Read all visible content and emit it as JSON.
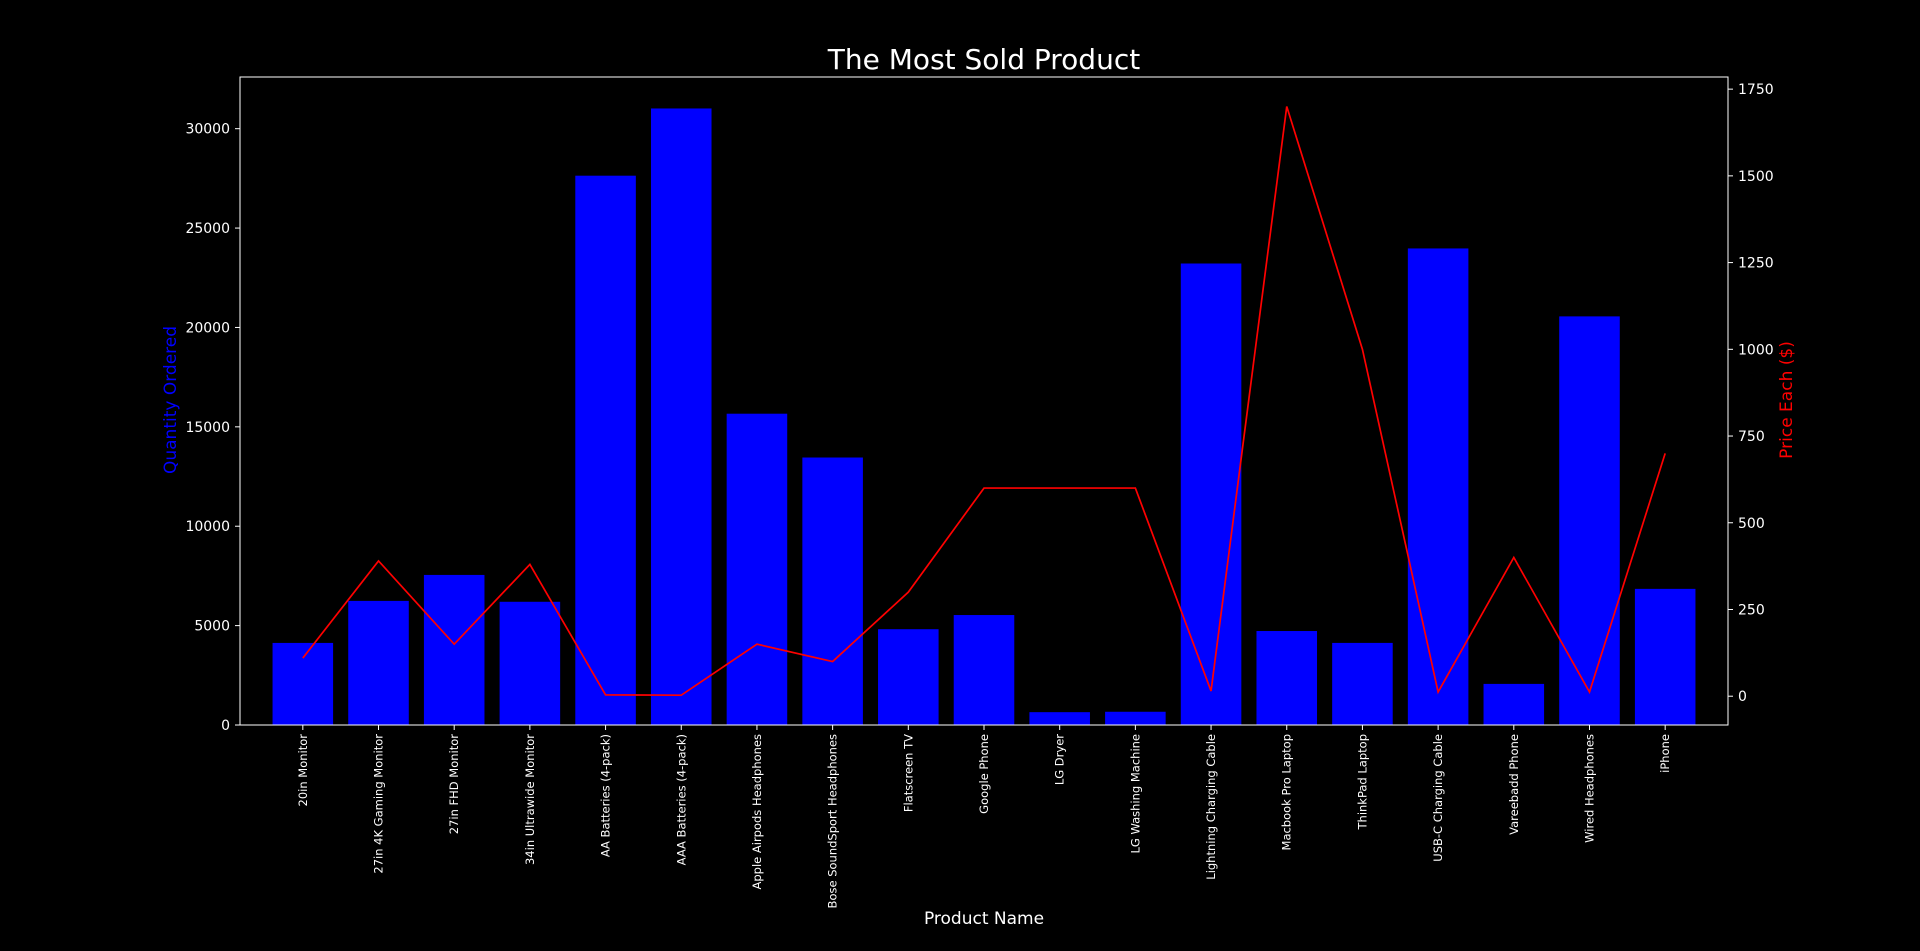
{
  "chart_data": {
    "type": "bar",
    "title": "The Most Sold Product",
    "xlabel": "Product Name",
    "ylabel": "Quantity Ordered",
    "y2label": "Price Each ($)",
    "categories": [
      "20in Monitor",
      "27in 4K Gaming Monitor",
      "27in FHD Monitor",
      "34in Ultrawide Monitor",
      "AA Batteries (4-pack)",
      "AAA Batteries (4-pack)",
      "Apple Airpods Headphones",
      "Bose SoundSport Headphones",
      "Flatscreen TV",
      "Google Phone",
      "LG Dryer",
      "LG Washing Machine",
      "Lightning Charging Cable",
      "Macbook Pro Laptop",
      "ThinkPad Laptop",
      "USB-C Charging Cable",
      "Vareebadd Phone",
      "Wired Headphones",
      "iPhone"
    ],
    "series": [
      {
        "axis": "left",
        "kind": "bar",
        "values": [
          4129,
          6244,
          7550,
          6199,
          27635,
          31017,
          15661,
          13457,
          4819,
          5532,
          646,
          666,
          23217,
          4728,
          4130,
          23975,
          2068,
          20557,
          6849
        ]
      },
      {
        "axis": "right",
        "kind": "line",
        "values": [
          109.99,
          389.99,
          149.99,
          379.99,
          3.84,
          2.99,
          150.0,
          99.99,
          300.0,
          600.0,
          600.0,
          600.0,
          14.95,
          1700.0,
          999.99,
          11.95,
          400.0,
          11.99,
          700.0
        ]
      }
    ],
    "ylim": [
      0,
      32600
    ],
    "y2lim": [
      -83,
      1785
    ],
    "yticks": [
      0,
      5000,
      10000,
      15000,
      20000,
      25000,
      30000
    ],
    "y2ticks": [
      0,
      250,
      500,
      750,
      1000,
      1250,
      1500,
      1750
    ],
    "colors": {
      "background": "#000000",
      "bars": "#0000ff",
      "line": "#ff0000",
      "axes": "#ffffff",
      "text": "#ffffff",
      "ylabel": "#0000ff",
      "y2label": "#ff0000"
    },
    "grid": false
  }
}
